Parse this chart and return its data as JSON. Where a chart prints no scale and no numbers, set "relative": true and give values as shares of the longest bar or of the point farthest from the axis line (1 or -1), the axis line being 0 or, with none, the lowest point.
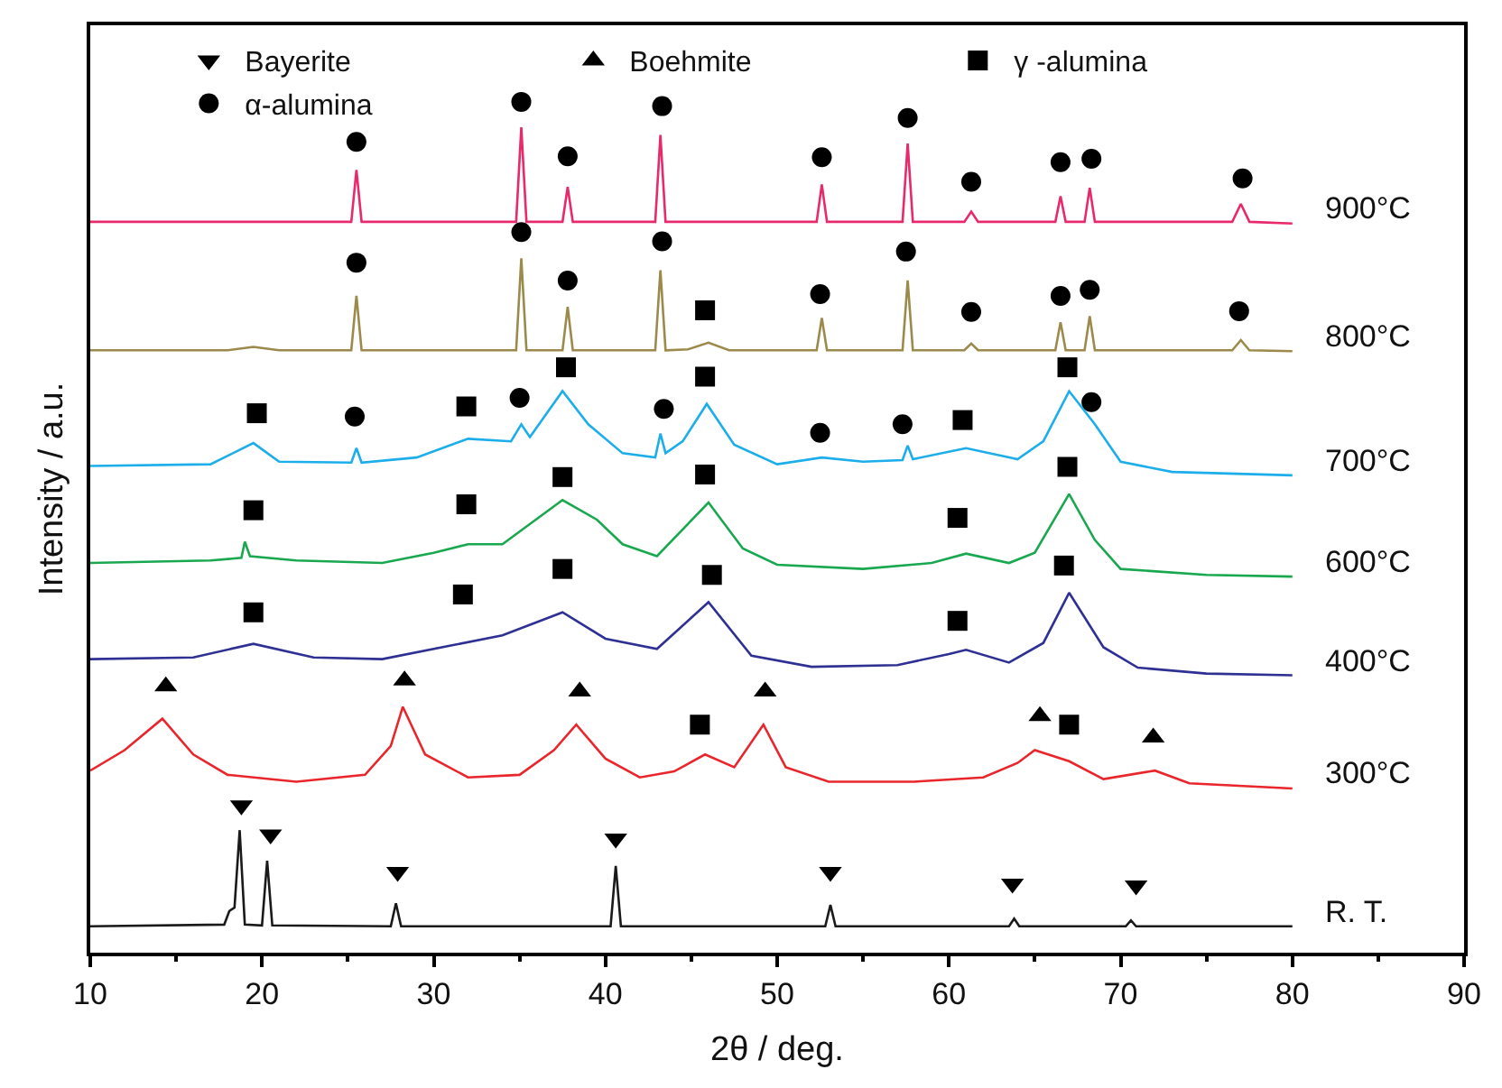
{
  "chart_data": {
    "type": "line",
    "relative": true,
    "xlabel": "2θ / deg.",
    "ylabel": "Intensity / a.u.",
    "xlim": [
      10,
      90
    ],
    "xticks": [
      10,
      20,
      30,
      40,
      50,
      60,
      70,
      80,
      90
    ],
    "tick_labels": "x",
    "legend": "top",
    "series": [
      {
        "name": "900°C",
        "color": "#e8296c",
        "x": [
          10,
          25.2,
          25.5,
          25.8,
          34.8,
          35.1,
          35.4,
          37.5,
          37.8,
          38.1,
          42.9,
          43.2,
          43.5,
          52.3,
          52.6,
          52.9,
          57.3,
          57.6,
          57.9,
          60.9,
          61.3,
          61.7,
          66.2,
          66.5,
          66.8,
          67.9,
          68.2,
          68.5,
          76.5,
          77.0,
          77.5,
          80
        ],
        "values": [
          0.859,
          0.859,
          0.92,
          0.859,
          0.859,
          0.97,
          0.859,
          0.859,
          0.9,
          0.859,
          0.859,
          0.961,
          0.859,
          0.859,
          0.903,
          0.859,
          0.859,
          0.951,
          0.859,
          0.859,
          0.871,
          0.859,
          0.859,
          0.889,
          0.859,
          0.859,
          0.899,
          0.859,
          0.859,
          0.88,
          0.859,
          0.857
        ]
      },
      {
        "name": "800°C",
        "color": "#9c8a4c",
        "x": [
          10,
          18,
          19.5,
          21,
          25.2,
          25.5,
          25.8,
          34.8,
          35.1,
          35.4,
          37.5,
          37.8,
          38.1,
          42.9,
          43.2,
          43.5,
          44.8,
          46.0,
          47.2,
          52.3,
          52.6,
          52.9,
          57.3,
          57.6,
          57.9,
          60.9,
          61.3,
          61.7,
          66.2,
          66.5,
          66.8,
          67.9,
          68.2,
          68.5,
          76.5,
          77.0,
          77.5,
          80
        ],
        "values": [
          0.708,
          0.708,
          0.712,
          0.708,
          0.708,
          0.772,
          0.708,
          0.708,
          0.816,
          0.708,
          0.708,
          0.759,
          0.708,
          0.708,
          0.802,
          0.708,
          0.709,
          0.717,
          0.708,
          0.708,
          0.746,
          0.708,
          0.708,
          0.79,
          0.708,
          0.708,
          0.716,
          0.708,
          0.708,
          0.741,
          0.708,
          0.708,
          0.748,
          0.708,
          0.708,
          0.72,
          0.708,
          0.707
        ]
      },
      {
        "name": "700°C",
        "color": "#1caeea",
        "x": [
          10,
          17,
          19.5,
          21,
          25.2,
          25.5,
          25.8,
          29,
          32,
          34.5,
          35.1,
          35.6,
          37.5,
          39,
          41,
          42.9,
          43.2,
          43.5,
          44.5,
          45.9,
          47.5,
          50,
          52.6,
          55,
          57.3,
          57.6,
          57.9,
          61,
          64,
          65.5,
          67,
          68.5,
          70,
          73,
          80
        ],
        "values": [
          0.572,
          0.574,
          0.599,
          0.577,
          0.576,
          0.593,
          0.576,
          0.582,
          0.604,
          0.601,
          0.621,
          0.606,
          0.66,
          0.621,
          0.587,
          0.582,
          0.61,
          0.587,
          0.601,
          0.645,
          0.597,
          0.574,
          0.582,
          0.577,
          0.579,
          0.596,
          0.58,
          0.593,
          0.58,
          0.601,
          0.66,
          0.621,
          0.577,
          0.565,
          0.561
        ]
      },
      {
        "name": "600°C",
        "color": "#19a84f",
        "x": [
          10,
          17,
          18.8,
          19,
          19.3,
          22,
          27,
          30,
          32,
          34,
          37.5,
          39.5,
          41,
          43,
          46,
          48,
          50,
          55,
          59,
          61,
          63.5,
          65,
          67,
          68.5,
          70,
          75,
          80
        ],
        "values": [
          0.458,
          0.461,
          0.464,
          0.483,
          0.466,
          0.461,
          0.458,
          0.47,
          0.48,
          0.48,
          0.532,
          0.509,
          0.48,
          0.466,
          0.529,
          0.475,
          0.456,
          0.451,
          0.458,
          0.469,
          0.458,
          0.47,
          0.539,
          0.485,
          0.451,
          0.444,
          0.442
        ]
      },
      {
        "name": "400°C",
        "color": "#2f3093",
        "x": [
          10,
          16,
          19.5,
          23,
          27,
          31,
          34,
          37.5,
          40,
          43,
          46,
          48.5,
          52,
          57,
          60,
          61,
          63.5,
          65.5,
          67,
          69,
          71,
          75,
          80
        ],
        "values": [
          0.345,
          0.347,
          0.363,
          0.347,
          0.345,
          0.361,
          0.373,
          0.4,
          0.369,
          0.357,
          0.412,
          0.349,
          0.336,
          0.338,
          0.351,
          0.356,
          0.341,
          0.364,
          0.423,
          0.359,
          0.335,
          0.328,
          0.326
        ]
      },
      {
        "name": "300°C",
        "color": "#e9262b",
        "x": [
          10,
          12,
          14.2,
          16,
          18,
          22,
          26,
          27.5,
          28.2,
          29.5,
          32,
          35,
          37,
          38.3,
          40,
          42,
          44,
          45.8,
          47.5,
          49.2,
          50.5,
          53,
          58,
          62,
          64,
          65,
          67,
          69,
          72,
          74,
          80
        ],
        "values": [
          0.214,
          0.238,
          0.275,
          0.233,
          0.209,
          0.201,
          0.209,
          0.243,
          0.289,
          0.233,
          0.206,
          0.209,
          0.238,
          0.268,
          0.228,
          0.206,
          0.213,
          0.233,
          0.218,
          0.268,
          0.218,
          0.201,
          0.201,
          0.206,
          0.223,
          0.238,
          0.225,
          0.204,
          0.214,
          0.199,
          0.193
        ]
      },
      {
        "name": "R. T.",
        "color": "#1a1a1a",
        "x": [
          10,
          17.8,
          18.1,
          18.4,
          18.7,
          19.0,
          20.0,
          20.3,
          20.6,
          27.5,
          27.8,
          28.1,
          40.3,
          40.6,
          40.9,
          52.8,
          53.1,
          53.4,
          63.5,
          63.8,
          64.1,
          70.3,
          70.6,
          70.9,
          80
        ],
        "values": [
          0.031,
          0.033,
          0.049,
          0.053,
          0.144,
          0.033,
          0.032,
          0.108,
          0.032,
          0.031,
          0.058,
          0.031,
          0.031,
          0.102,
          0.031,
          0.031,
          0.056,
          0.031,
          0.031,
          0.04,
          0.031,
          0.031,
          0.038,
          0.031,
          0.031
        ]
      },
      {
        "name": "Bayerite",
        "type": "scatter",
        "marker": "triangle-down",
        "color": "#000000",
        "x": [
          18.8,
          20.5,
          27.9,
          40.6,
          53.1,
          63.7,
          70.9
        ],
        "values": [
          0.173,
          0.139,
          0.095,
          0.134,
          0.095,
          0.081,
          0.079
        ]
      },
      {
        "name": "Boehmite",
        "type": "scatter",
        "marker": "triangle",
        "color": "#000000",
        "x": [
          14.4,
          28.3,
          38.5,
          49.3,
          65.3,
          71.9
        ],
        "values": [
          0.313,
          0.32,
          0.307,
          0.307,
          0.278,
          0.253
        ]
      },
      {
        "name": "γ -alumina",
        "type": "scatter",
        "marker": "square",
        "color": "#000000",
        "x": [
          45.8,
          19.7,
          31.9,
          37.7,
          45.8,
          60.8,
          66.9,
          19.5,
          31.9,
          37.5,
          45.8,
          60.5,
          66.9,
          19.5,
          31.7,
          37.5,
          46.2,
          60.5,
          66.7,
          45.5,
          67.0
        ],
        "values": [
          0.755,
          0.634,
          0.642,
          0.688,
          0.677,
          0.626,
          0.688,
          0.52,
          0.527,
          0.559,
          0.562,
          0.511,
          0.571,
          0.4,
          0.421,
          0.451,
          0.444,
          0.39,
          0.455,
          0.268,
          0.268
        ]
      },
      {
        "name": "α-alumina",
        "type": "scatter",
        "marker": "circle",
        "color": "#000000",
        "x": [
          25.5,
          35.1,
          37.8,
          43.3,
          52.6,
          57.6,
          61.3,
          66.5,
          68.3,
          77.1,
          25.5,
          35.1,
          37.8,
          43.3,
          52.5,
          57.5,
          61.3,
          66.5,
          68.2,
          76.9,
          25.4,
          35.0,
          43.4,
          52.5,
          57.3,
          68.3
        ],
        "values": [
          0.953,
          1.0,
          0.936,
          0.995,
          0.935,
          0.981,
          0.906,
          0.929,
          0.933,
          0.91,
          0.811,
          0.847,
          0.79,
          0.836,
          0.774,
          0.824,
          0.753,
          0.772,
          0.779,
          0.754,
          0.63,
          0.652,
          0.639,
          0.611,
          0.621,
          0.647
        ]
      }
    ]
  }
}
